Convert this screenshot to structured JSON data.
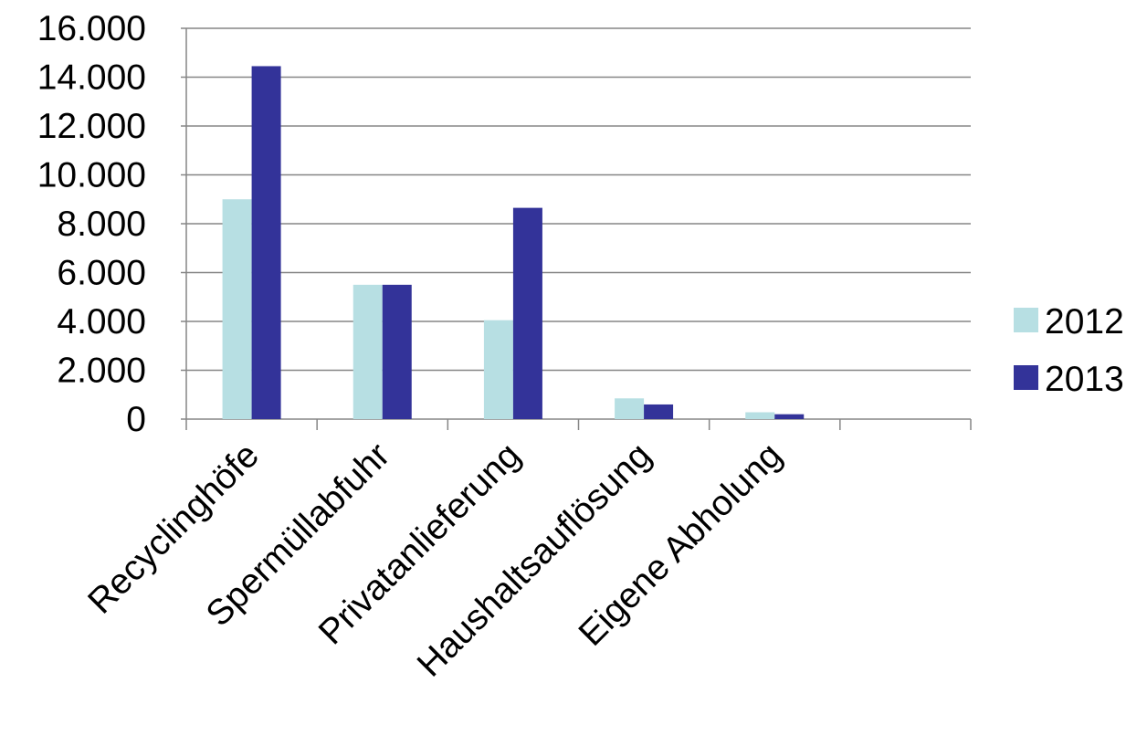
{
  "chart_data": {
    "type": "bar",
    "title": "",
    "xlabel": "",
    "ylabel": "",
    "categories": [
      "Recyclinghöfe",
      "Spermüllabfuhr",
      "Privatanlieferung",
      "Haushaltsauflösung",
      "Eigene Abholung",
      ""
    ],
    "series": [
      {
        "name": "2012",
        "color": "#b7dfe3",
        "values": [
          9000,
          5500,
          4050,
          850,
          280,
          null
        ]
      },
      {
        "name": "2013",
        "color": "#333399",
        "values": [
          14450,
          5500,
          8650,
          600,
          200,
          null
        ]
      }
    ],
    "ylim": [
      0,
      16000
    ],
    "yticks": [
      0,
      2000,
      4000,
      6000,
      8000,
      10000,
      12000,
      14000,
      16000
    ],
    "ytick_labels": [
      "0",
      "2.000",
      "4.000",
      "6.000",
      "8.000",
      "10.000",
      "12.000",
      "14.000",
      "16.000"
    ],
    "grid": "horizontal",
    "legend_position": "right"
  }
}
